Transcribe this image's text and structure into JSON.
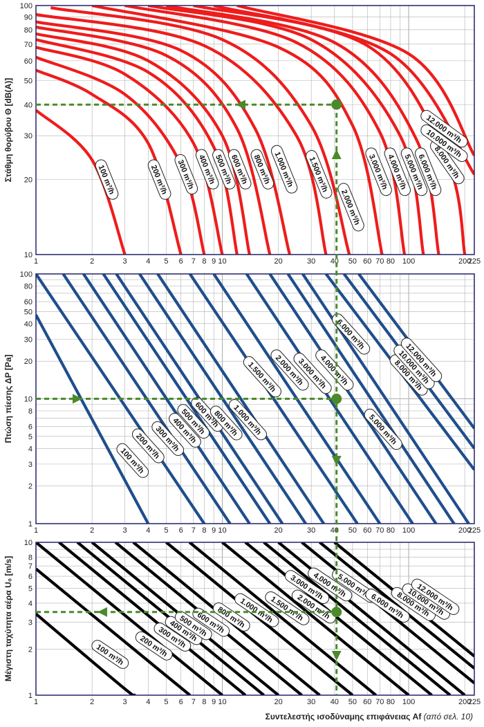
{
  "chart_data": [
    {
      "type": "line",
      "id": "noise",
      "ylabel": "Στάθμη θορύβου Θ [dB(A)]",
      "yscale": "log",
      "ylim": [
        10,
        100
      ],
      "yticks": [
        10,
        20,
        30,
        40,
        50,
        60,
        70,
        80,
        90,
        100
      ],
      "xscale": "log",
      "xlim": [
        1,
        225
      ],
      "xticks": [
        1,
        2,
        3,
        4,
        5,
        6,
        7,
        8,
        9,
        10,
        20,
        30,
        40,
        50,
        60,
        70,
        80,
        100,
        200,
        225
      ],
      "line_color": "#ee1c1c",
      "series": [
        {
          "name": "100 m³/h",
          "flow": 100,
          "points": [
            [
              1,
              38
            ],
            [
              2,
              24
            ],
            [
              3,
              10
            ]
          ]
        },
        {
          "name": "200 m³/h",
          "flow": 200,
          "points": [
            [
              1,
              55
            ],
            [
              2,
              44
            ],
            [
              4,
              28
            ],
            [
              6,
              10
            ]
          ]
        },
        {
          "name": "300 m³/h",
          "flow": 300,
          "points": [
            [
              1,
              62
            ],
            [
              3,
              44
            ],
            [
              6,
              23
            ],
            [
              8,
              10
            ]
          ]
        },
        {
          "name": "400 m³/h",
          "flow": 400,
          "points": [
            [
              1,
              68
            ],
            [
              3,
              53
            ],
            [
              7,
              28
            ],
            [
              10,
              10
            ]
          ]
        },
        {
          "name": "500 m³/h",
          "flow": 500,
          "points": [
            [
              1,
              73
            ],
            [
              4,
              54
            ],
            [
              9,
              27
            ],
            [
              12,
              10
            ]
          ]
        },
        {
          "name": "600 m³/h",
          "flow": 600,
          "points": [
            [
              1,
              77
            ],
            [
              4,
              60
            ],
            [
              10,
              30
            ],
            [
              14,
              10
            ]
          ]
        },
        {
          "name": "800 m³/h",
          "flow": 800,
          "points": [
            [
              1,
              82
            ],
            [
              5,
              63
            ],
            [
              12,
              32
            ],
            [
              18,
              10
            ]
          ]
        },
        {
          "name": "1.000 m³/h",
          "flow": 1000,
          "points": [
            [
              1,
              86
            ],
            [
              6,
              66
            ],
            [
              15,
              32
            ],
            [
              23,
              10
            ]
          ]
        },
        {
          "name": "1.500 m³/h",
          "flow": 1500,
          "points": [
            [
              1,
              92
            ],
            [
              8,
              69
            ],
            [
              25,
              30
            ],
            [
              36,
              10
            ]
          ]
        },
        {
          "name": "2.000 m³/h",
          "flow": 2000,
          "points": [
            [
              1.2,
              98
            ],
            [
              10,
              73
            ],
            [
              30,
              33
            ],
            [
              48,
              10
            ]
          ]
        },
        {
          "name": "3.000 m³/h",
          "flow": 3000,
          "points": [
            [
              2,
              100
            ],
            [
              20,
              68
            ],
            [
              50,
              33
            ],
            [
              72,
              10
            ]
          ]
        },
        {
          "name": "4.000 m³/h",
          "flow": 4000,
          "points": [
            [
              3,
              100
            ],
            [
              25,
              71
            ],
            [
              70,
              31
            ],
            [
              95,
              10
            ]
          ]
        },
        {
          "name": "5.000 m³/h",
          "flow": 5000,
          "points": [
            [
              4,
              100
            ],
            [
              30,
              73
            ],
            [
              90,
              30
            ],
            [
              120,
              10
            ]
          ]
        },
        {
          "name": "6.000 m³/h",
          "flow": 6000,
          "points": [
            [
              5,
              100
            ],
            [
              40,
              71
            ],
            [
              110,
              29
            ],
            [
              145,
              10
            ]
          ]
        },
        {
          "name": "8.000 m³/h",
          "flow": 8000,
          "points": [
            [
              7,
              100
            ],
            [
              60,
              69
            ],
            [
              160,
              24
            ],
            [
              200,
              10
            ]
          ]
        },
        {
          "name": "10.000 m³/h",
          "flow": 10000,
          "points": [
            [
              9,
              100
            ],
            [
              80,
              64
            ],
            [
              225,
              21
            ]
          ]
        },
        {
          "name": "12.000 m³/h",
          "flow": 12000,
          "points": [
            [
              12,
              100
            ],
            [
              100,
              64
            ],
            [
              225,
              25
            ]
          ]
        }
      ],
      "example": {
        "af": 41,
        "value": 40
      }
    },
    {
      "type": "line",
      "id": "pressure",
      "ylabel": "Πτώση πίεσης ΔP [Pa]",
      "yscale": "log",
      "ylim": [
        1,
        100
      ],
      "yticks": [
        1,
        2,
        3,
        4,
        5,
        6,
        8,
        10,
        20,
        30,
        40,
        50,
        60,
        80,
        100
      ],
      "xscale": "log",
      "xlim": [
        1,
        225
      ],
      "xticks": [
        1,
        2,
        3,
        4,
        5,
        6,
        7,
        8,
        9,
        10,
        20,
        30,
        40,
        50,
        60,
        70,
        80,
        100,
        200,
        225
      ],
      "line_color": "#1f4e8c",
      "series": [
        {
          "name": "100 m³/h",
          "flow": 100,
          "points": [
            [
              1,
              47
            ],
            [
              4,
              1
            ]
          ]
        },
        {
          "name": "200 m³/h",
          "flow": 200,
          "points": [
            [
              1,
              100
            ],
            [
              8,
              1
            ]
          ]
        },
        {
          "name": "300 m³/h",
          "flow": 300,
          "points": [
            [
              1.4,
              100
            ],
            [
              11,
              1
            ]
          ]
        },
        {
          "name": "400 m³/h",
          "flow": 400,
          "points": [
            [
              1.8,
              100
            ],
            [
              14,
              1
            ]
          ]
        },
        {
          "name": "500 m³/h",
          "flow": 500,
          "points": [
            [
              2.3,
              100
            ],
            [
              18,
              1
            ]
          ]
        },
        {
          "name": "600 m³/h",
          "flow": 600,
          "points": [
            [
              2.7,
              100
            ],
            [
              21,
              1
            ]
          ]
        },
        {
          "name": "800 m³/h",
          "flow": 800,
          "points": [
            [
              3.6,
              100
            ],
            [
              28,
              1
            ]
          ]
        },
        {
          "name": "1.000 m³/h",
          "flow": 1000,
          "points": [
            [
              4.5,
              100
            ],
            [
              35,
              1
            ]
          ]
        },
        {
          "name": "1.500 m³/h",
          "flow": 1500,
          "points": [
            [
              6.7,
              100
            ],
            [
              53,
              1
            ]
          ]
        },
        {
          "name": "2.000 m³/h",
          "flow": 2000,
          "points": [
            [
              9,
              100
            ],
            [
              70,
              1
            ]
          ]
        },
        {
          "name": "3.000 m³/h",
          "flow": 3000,
          "points": [
            [
              13.5,
              100
            ],
            [
              105,
              1
            ]
          ]
        },
        {
          "name": "4.000 m³/h",
          "flow": 4000,
          "points": [
            [
              18,
              100
            ],
            [
              140,
              1
            ]
          ]
        },
        {
          "name": "5.000 m³/h",
          "flow": 5000,
          "points": [
            [
              22.5,
              100
            ],
            [
              175,
              1
            ]
          ]
        },
        {
          "name": "6.000 m³/h",
          "flow": 6000,
          "points": [
            [
              27,
              100
            ],
            [
              210,
              1
            ]
          ]
        },
        {
          "name": "8.000 m³/h",
          "flow": 8000,
          "points": [
            [
              36,
              100
            ],
            [
              225,
              2.7
            ]
          ]
        },
        {
          "name": "10.000 m³/h",
          "flow": 10000,
          "points": [
            [
              45,
              100
            ],
            [
              225,
              4
            ]
          ]
        },
        {
          "name": "12.000 m³/h",
          "flow": 12000,
          "points": [
            [
              54,
              100
            ],
            [
              225,
              5.8
            ]
          ]
        }
      ],
      "example": {
        "af": 41,
        "value": 10
      }
    },
    {
      "type": "line",
      "id": "velocity",
      "ylabel": "Μέγιστη ταχύτητα αέρα U₀ [m/s]",
      "yscale": "log",
      "ylim": [
        1,
        10
      ],
      "yticks": [
        1,
        2,
        3,
        4,
        5,
        6,
        7,
        8,
        10
      ],
      "xscale": "log",
      "xlim": [
        1,
        225
      ],
      "xticks": [
        1,
        2,
        3,
        4,
        5,
        6,
        7,
        8,
        9,
        10,
        20,
        30,
        40,
        50,
        60,
        70,
        80,
        100,
        200,
        225
      ],
      "xlabel": "Συντελεστής ισοδύναμης επιφάνειας Af",
      "xlabel_note": "(από σελ. 10)",
      "line_color": "#000000",
      "series": [
        {
          "name": "100 m³/h",
          "flow": 100,
          "points": [
            [
              1,
              3.4
            ],
            [
              3,
              1.1
            ],
            [
              3.4,
              1
            ]
          ]
        },
        {
          "name": "200 m³/h",
          "flow": 200,
          "points": [
            [
              1,
              6.7
            ],
            [
              6.7,
              1
            ]
          ]
        },
        {
          "name": "300 m³/h",
          "flow": 300,
          "points": [
            [
              1,
              10
            ],
            [
              10,
              1
            ]
          ]
        },
        {
          "name": "400 m³/h",
          "flow": 400,
          "points": [
            [
              1.33,
              10
            ],
            [
              13.3,
              1
            ]
          ]
        },
        {
          "name": "500 m³/h",
          "flow": 500,
          "points": [
            [
              1.67,
              10
            ],
            [
              16.7,
              1
            ]
          ]
        },
        {
          "name": "600 m³/h",
          "flow": 600,
          "points": [
            [
              2,
              10
            ],
            [
              20,
              1
            ]
          ]
        },
        {
          "name": "800 m³/h",
          "flow": 800,
          "points": [
            [
              2.67,
              10
            ],
            [
              26.7,
              1
            ]
          ]
        },
        {
          "name": "1.000 m³/h",
          "flow": 1000,
          "points": [
            [
              3.33,
              10
            ],
            [
              33.3,
              1
            ]
          ]
        },
        {
          "name": "1.500 m³/h",
          "flow": 1500,
          "points": [
            [
              5,
              10
            ],
            [
              50,
              1
            ]
          ]
        },
        {
          "name": "2.000 m³/h",
          "flow": 2000,
          "points": [
            [
              6.67,
              10
            ],
            [
              66.7,
              1
            ]
          ]
        },
        {
          "name": "3.000 m³/h",
          "flow": 3000,
          "points": [
            [
              10,
              10
            ],
            [
              100,
              1
            ]
          ]
        },
        {
          "name": "4.000 m³/h",
          "flow": 4000,
          "points": [
            [
              13.3,
              10
            ],
            [
              133,
              1
            ]
          ]
        },
        {
          "name": "5.000 m³/h",
          "flow": 5000,
          "points": [
            [
              16.7,
              10
            ],
            [
              167,
              1
            ]
          ]
        },
        {
          "name": "6.000 m³/h",
          "flow": 6000,
          "points": [
            [
              20,
              10
            ],
            [
              200,
              1
            ]
          ]
        },
        {
          "name": "8.000 m³/h",
          "flow": 8000,
          "points": [
            [
              26.7,
              10
            ],
            [
              225,
              1.2
            ]
          ]
        },
        {
          "name": "10.000 m³/h",
          "flow": 10000,
          "points": [
            [
              33.3,
              10
            ],
            [
              225,
              1.5
            ]
          ]
        },
        {
          "name": "12.000 m³/h",
          "flow": 12000,
          "points": [
            [
              40,
              10
            ],
            [
              225,
              1.8
            ]
          ]
        }
      ],
      "example": {
        "af": 41,
        "value": 3.5
      }
    }
  ],
  "colors": {
    "example_line": "#4a8a2a",
    "grid": "#b0b0b0",
    "frame": "#22226a"
  }
}
